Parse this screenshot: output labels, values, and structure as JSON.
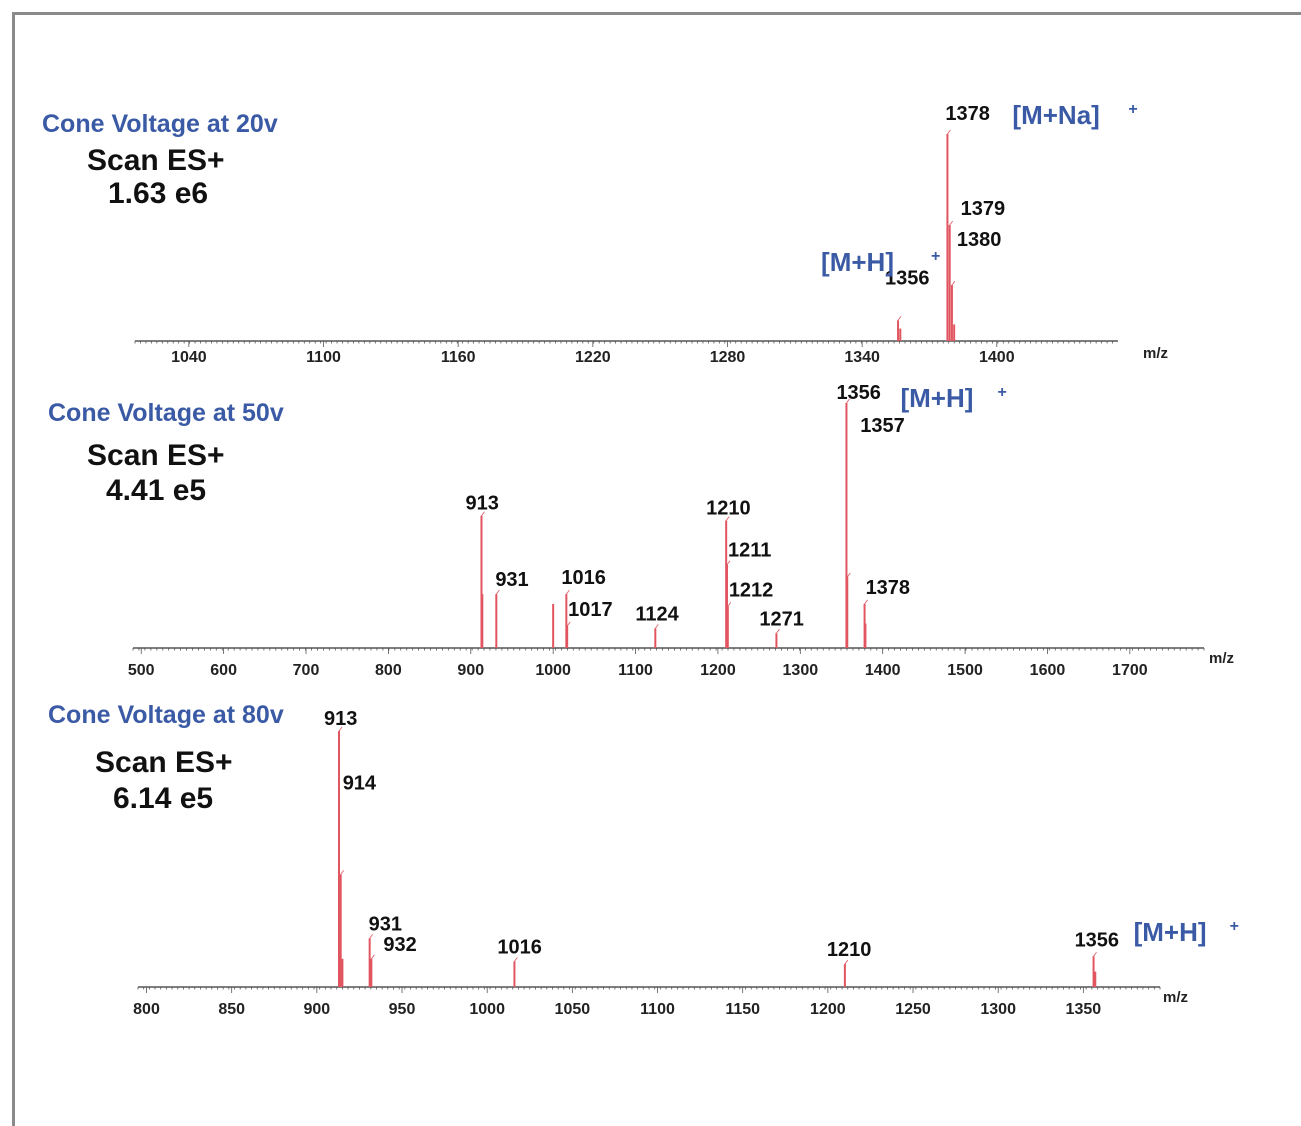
{
  "chart_data": [
    {
      "type": "bar",
      "panel_title": "Cone Voltage at 20v",
      "scan": "Scan ES+",
      "intensity": "1.63 e6",
      "xlabel": "m/z",
      "xticks": [
        1040,
        1100,
        1160,
        1220,
        1280,
        1340,
        1400
      ],
      "xlim": [
        1016,
        1454
      ],
      "ylim": [
        0,
        100
      ],
      "peaks": [
        {
          "x": 1356,
          "y": 10,
          "label": "1356"
        },
        {
          "x": 1357,
          "y": 6,
          "label": ""
        },
        {
          "x": 1378,
          "y": 100,
          "label": "1378"
        },
        {
          "x": 1379,
          "y": 56,
          "label": "1379"
        },
        {
          "x": 1380,
          "y": 27,
          "label": "1380"
        },
        {
          "x": 1381,
          "y": 8,
          "label": ""
        }
      ],
      "annotations": [
        {
          "text": "[M+Na]",
          "sup": "+",
          "near": 1378
        },
        {
          "text": "[M+H]",
          "sup": "+",
          "near": 1356
        }
      ]
    },
    {
      "type": "bar",
      "panel_title": "Cone Voltage at 50v",
      "scan": "Scan ES+",
      "intensity": "4.41 e5",
      "xlabel": "m/z",
      "xticks": [
        500,
        600,
        700,
        800,
        900,
        1000,
        1100,
        1200,
        1300,
        1400,
        1500,
        1600,
        1700
      ],
      "xlim": [
        490,
        1790
      ],
      "ylim": [
        0,
        100
      ],
      "peaks": [
        {
          "x": 913,
          "y": 54,
          "label": "913"
        },
        {
          "x": 914,
          "y": 22,
          "label": ""
        },
        {
          "x": 931,
          "y": 22,
          "label": "931"
        },
        {
          "x": 1000,
          "y": 18,
          "label": ""
        },
        {
          "x": 1016,
          "y": 22,
          "label": "1016"
        },
        {
          "x": 1017,
          "y": 9,
          "label": "1017"
        },
        {
          "x": 1124,
          "y": 8,
          "label": "1124"
        },
        {
          "x": 1210,
          "y": 52,
          "label": "1210"
        },
        {
          "x": 1211,
          "y": 34,
          "label": "1211"
        },
        {
          "x": 1212,
          "y": 17,
          "label": "1212"
        },
        {
          "x": 1271,
          "y": 6,
          "label": "1271"
        },
        {
          "x": 1356,
          "y": 100,
          "label": "1356"
        },
        {
          "x": 1357,
          "y": 29,
          "label": "1357"
        },
        {
          "x": 1378,
          "y": 18,
          "label": "1378"
        },
        {
          "x": 1379,
          "y": 10,
          "label": ""
        }
      ],
      "annotations": [
        {
          "text": "[M+H]",
          "sup": "+",
          "near": 1356
        }
      ]
    },
    {
      "type": "bar",
      "panel_title": "Cone Voltage at 80v",
      "scan": "Scan ES+",
      "intensity": "6.14 e5",
      "xlabel": "m/z",
      "xticks": [
        800,
        850,
        900,
        950,
        1000,
        1050,
        1100,
        1150,
        1200,
        1250,
        1300,
        1350
      ],
      "xlim": [
        795,
        1395
      ],
      "ylim": [
        0,
        100
      ],
      "peaks": [
        {
          "x": 913,
          "y": 100,
          "label": "913"
        },
        {
          "x": 914,
          "y": 44,
          "label": "914"
        },
        {
          "x": 915,
          "y": 11,
          "label": ""
        },
        {
          "x": 931,
          "y": 19,
          "label": "931"
        },
        {
          "x": 932,
          "y": 11,
          "label": "932"
        },
        {
          "x": 1016,
          "y": 10,
          "label": "1016"
        },
        {
          "x": 1210,
          "y": 9,
          "label": "1210"
        },
        {
          "x": 1356,
          "y": 12,
          "label": "1356"
        },
        {
          "x": 1357,
          "y": 6,
          "label": ""
        }
      ],
      "annotations": [
        {
          "text": "[M+H]",
          "sup": "+",
          "near": 1356
        }
      ]
    }
  ],
  "colors": {
    "peak": "#e0555f",
    "title_blue": "#3a5aa5",
    "text": "#111111"
  }
}
